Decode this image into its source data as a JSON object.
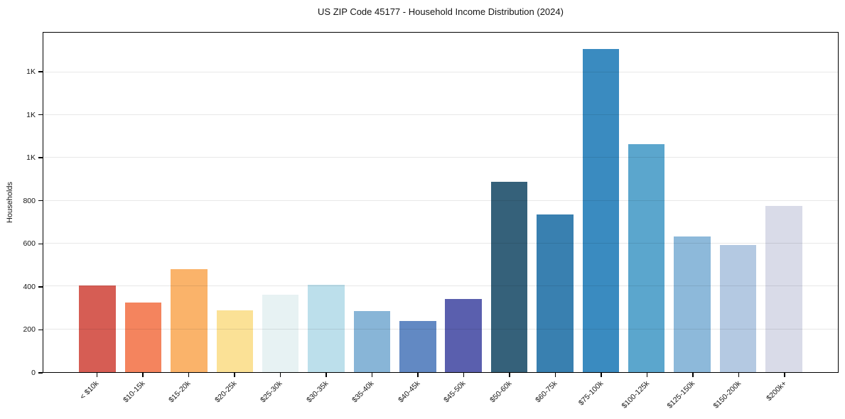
{
  "chart_data": {
    "type": "bar",
    "title": "US ZIP Code 45177 - Household Income Distribution (2024)",
    "xlabel": "",
    "ylabel": "Households",
    "categories": [
      "< $10k",
      "$10-15k",
      "$15-20k",
      "$20-25k",
      "$25-30k",
      "$30-35k",
      "$35-40k",
      "$40-45k",
      "$45-50k",
      "$50-60k",
      "$60-75k",
      "$75-100k",
      "$100-125k",
      "$125-150k",
      "$150-200k",
      "$200k+"
    ],
    "values": [
      405,
      325,
      480,
      288,
      362,
      408,
      285,
      240,
      343,
      890,
      735,
      1510,
      1065,
      632,
      593,
      776
    ],
    "bar_colors": [
      "#d65d54",
      "#f4845e",
      "#fab36a",
      "#fbe196",
      "#e7f2f3",
      "#bcdfeb",
      "#88b5d7",
      "#6289c3",
      "#5a5fae",
      "#35617a",
      "#3980b0",
      "#3a8bc0",
      "#5ba6cd",
      "#8db9da",
      "#b4c9e2",
      "#d9dbe8"
    ],
    "ylim": [
      0,
      1585
    ],
    "yticks": [
      {
        "value": 0,
        "label": "0"
      },
      {
        "value": 200,
        "label": "200"
      },
      {
        "value": 400,
        "label": "400"
      },
      {
        "value": 600,
        "label": "600"
      },
      {
        "value": 800,
        "label": "800"
      },
      {
        "value": 1000,
        "label": "1K"
      },
      {
        "value": 1200,
        "label": "1K"
      },
      {
        "value": 1400,
        "label": "1K"
      }
    ],
    "grid": "horizontal, drawn faintly over bars",
    "legend": "none",
    "bar_width_ratio": 0.8
  },
  "colors": {
    "background": "#ffffff",
    "spine": "#000000",
    "gridline": "#e8e8e8",
    "text": "#151515"
  }
}
